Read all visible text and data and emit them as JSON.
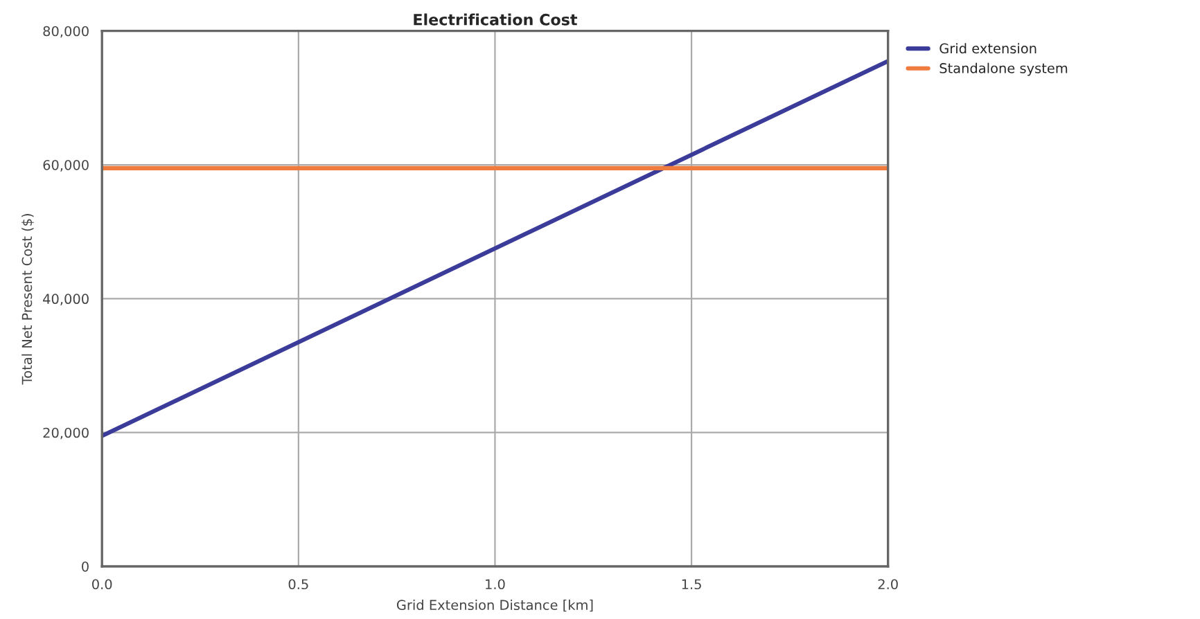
{
  "chart_data": {
    "type": "line",
    "title": "Electrification Cost",
    "xlabel": "Grid Extension Distance [km]",
    "ylabel": "Total Net Present Cost ($)",
    "x": [
      0.0,
      2.0
    ],
    "series": [
      {
        "name": "Grid extension",
        "color": "#3b3b9a",
        "values": [
          19500,
          75500
        ]
      },
      {
        "name": "Standalone system",
        "color": "#f07b3f",
        "values": [
          59500,
          59500
        ]
      }
    ],
    "xlim": [
      0.0,
      2.0
    ],
    "xticks": [
      {
        "value": 0,
        "label": "0.0"
      },
      0.5,
      {
        "value": 1,
        "label": "1.0"
      },
      1.5,
      {
        "value": 2,
        "label": "2.0"
      }
    ],
    "ylim": [
      0,
      80000
    ],
    "yticks": [
      0,
      {
        "value": 20000,
        "label": "20,000"
      },
      {
        "value": 40000,
        "label": "40,000"
      },
      {
        "value": 60000,
        "label": "60,000"
      },
      {
        "value": 80000,
        "label": "80,000"
      }
    ],
    "grid": true,
    "legend": "top right",
    "marker": "none",
    "line_style": "solid"
  }
}
